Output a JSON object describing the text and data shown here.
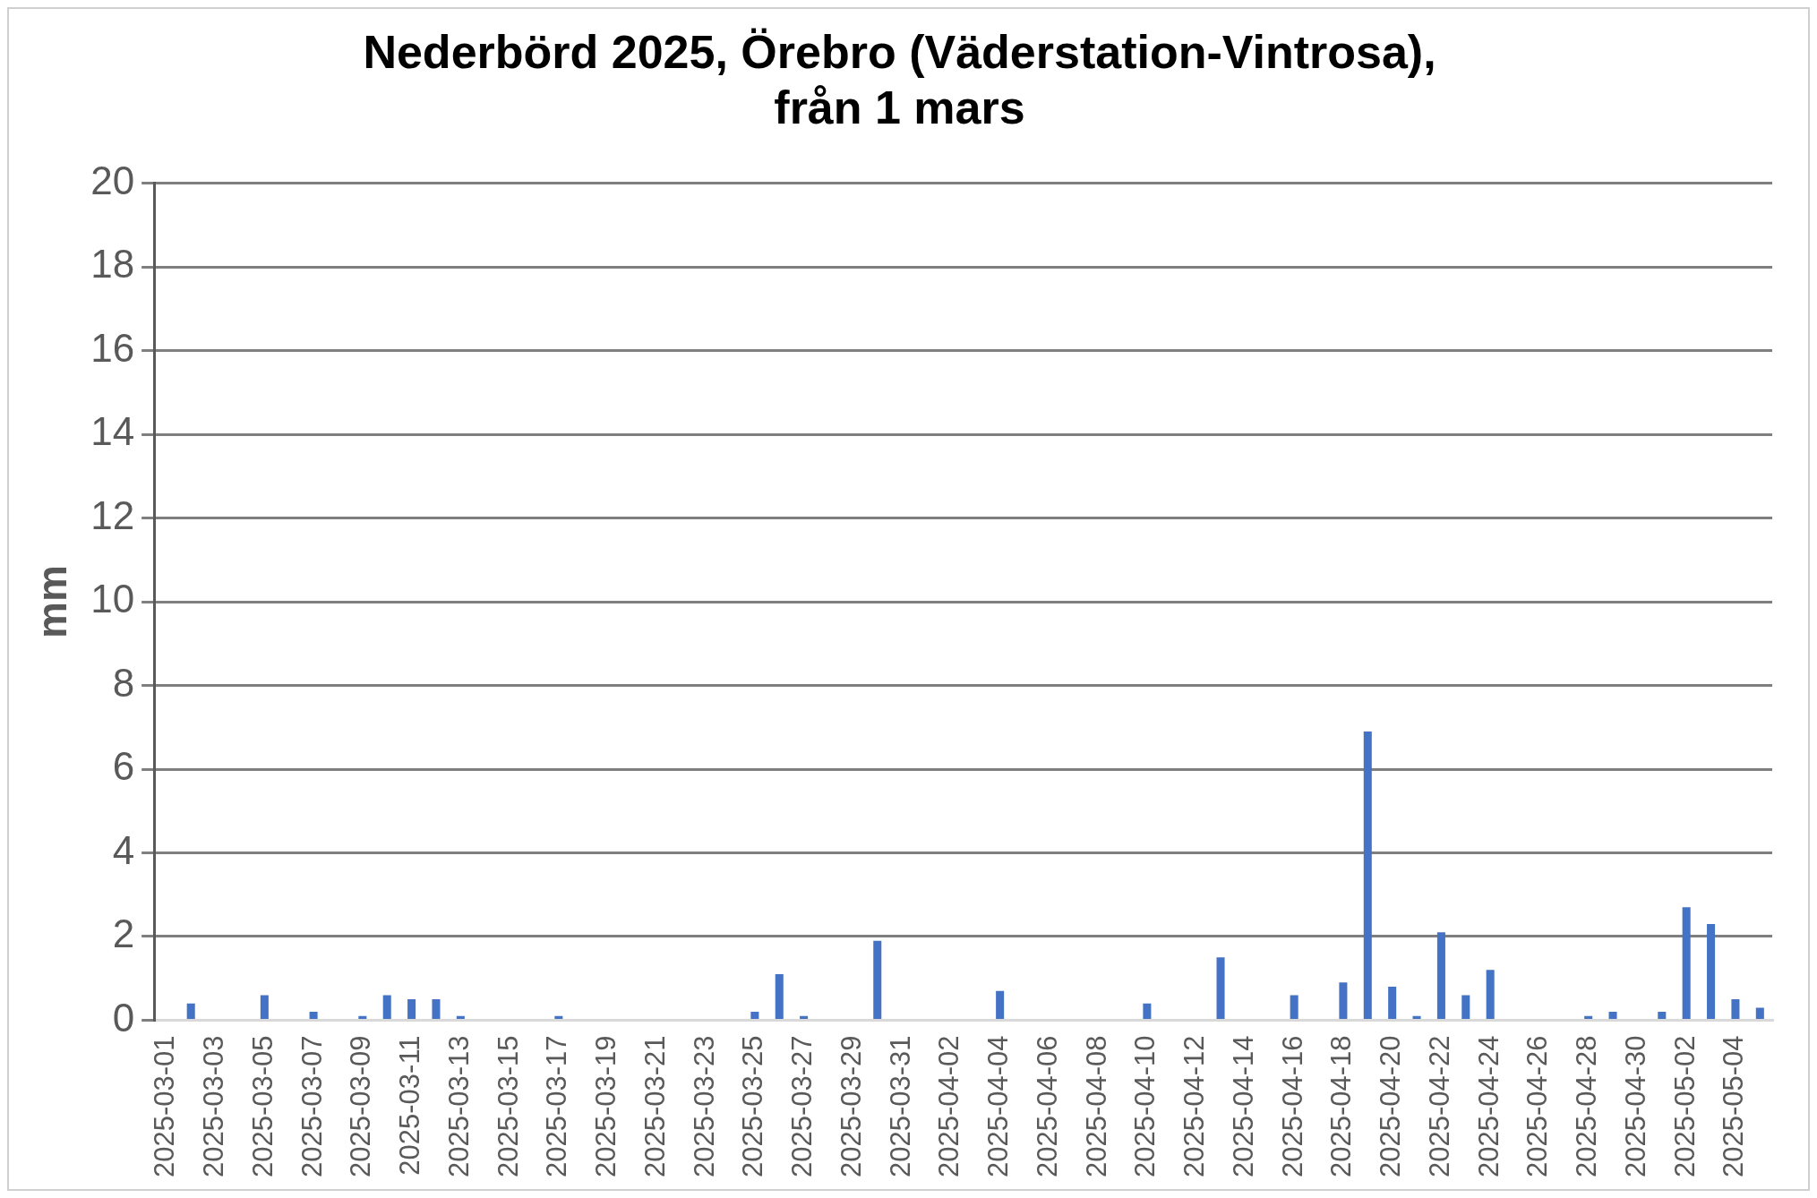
{
  "chart_data": {
    "type": "bar",
    "title": "Nederbörd 2025, Örebro (Väderstation-Vintrosa),\nfrån 1 mars",
    "ylabel": "mm",
    "categories": [
      "2025-03-01",
      null,
      "2025-03-03",
      null,
      "2025-03-05",
      null,
      "2025-03-07",
      null,
      "2025-03-09",
      null,
      "2025-03-11",
      null,
      "2025-03-13",
      null,
      "2025-03-15",
      null,
      "2025-03-17",
      null,
      "2025-03-19",
      null,
      "2025-03-21",
      null,
      "2025-03-23",
      null,
      "2025-03-25",
      null,
      "2025-03-27",
      null,
      "2025-03-29",
      null,
      "2025-03-31",
      null,
      "2025-04-02",
      null,
      "2025-04-04",
      null,
      "2025-04-06",
      null,
      "2025-04-08",
      null,
      "2025-04-10",
      null,
      "2025-04-12",
      null,
      "2025-04-14",
      null,
      "2025-04-16",
      null,
      "2025-04-18",
      null,
      "2025-04-20",
      null,
      "2025-04-22",
      null,
      "2025-04-24",
      null,
      "2025-04-26",
      null,
      "2025-04-28",
      null,
      "2025-04-30",
      null,
      "2025-05-02",
      null,
      "2025-05-04",
      null
    ],
    "values": [
      0,
      0.4,
      0,
      0,
      0.6,
      0,
      0.2,
      0,
      0.1,
      0.6,
      0.5,
      0.5,
      0.1,
      0,
      0,
      0,
      0.1,
      0,
      0,
      0,
      0,
      0,
      0,
      0,
      0.2,
      1.1,
      0.1,
      0,
      0,
      1.9,
      0,
      0,
      0,
      0,
      0.7,
      0,
      0,
      0,
      0,
      0,
      0.4,
      0,
      0,
      1.5,
      0,
      0,
      0.6,
      0,
      0.9,
      6.9,
      0.8,
      0.1,
      2.1,
      0.6,
      1.2,
      0,
      0,
      0,
      0.1,
      0.2,
      0,
      0.2,
      2.7,
      2.3,
      0.5,
      0.3
    ],
    "color": "#4472c4",
    "ylim": [
      0,
      20
    ],
    "yticks": [
      0,
      2,
      4,
      6,
      8,
      10,
      12,
      14,
      16,
      18,
      20
    ],
    "grid": "y",
    "legend": false
  }
}
